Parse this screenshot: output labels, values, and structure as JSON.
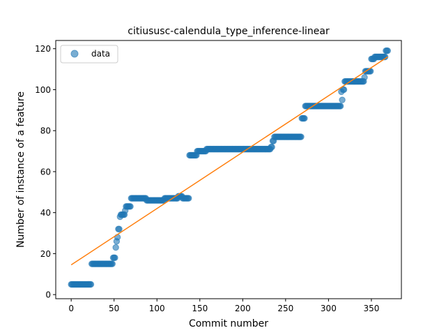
{
  "chart_data": {
    "type": "scatter",
    "title": "citiususc-calendula_type_inference-linear",
    "xlabel": "Commit number",
    "ylabel": "Number of instance of a feature",
    "xlim": [
      -18,
      385
    ],
    "ylim": [
      -2,
      124
    ],
    "xticks": [
      0,
      50,
      100,
      150,
      200,
      250,
      300,
      350
    ],
    "yticks": [
      0,
      20,
      40,
      60,
      80,
      100,
      120
    ],
    "grid": false,
    "legend_position": "top-left",
    "colors": {
      "data": "#1f77b4",
      "fit": "#ff7f0e"
    },
    "series": [
      {
        "name": "data",
        "kind": "scatter",
        "segments": [
          {
            "x_start": 0,
            "x_end": 23,
            "y": 5
          },
          {
            "x_start": 24,
            "x_end": 48,
            "y": 15
          },
          {
            "x_start": 49,
            "x_end": 51,
            "y": 18
          },
          {
            "x_start": 52,
            "x_end": 52,
            "y": 23
          },
          {
            "x_start": 53,
            "x_end": 53,
            "y": 26
          },
          {
            "x_start": 54,
            "x_end": 54,
            "y": 28
          },
          {
            "x_start": 55,
            "x_end": 56,
            "y": 32
          },
          {
            "x_start": 57,
            "x_end": 57,
            "y": 38
          },
          {
            "x_start": 58,
            "x_end": 62,
            "y": 39
          },
          {
            "x_start": 63,
            "x_end": 63,
            "y": 41
          },
          {
            "x_start": 64,
            "x_end": 69,
            "y": 43
          },
          {
            "x_start": 70,
            "x_end": 87,
            "y": 47
          },
          {
            "x_start": 88,
            "x_end": 108,
            "y": 46
          },
          {
            "x_start": 109,
            "x_end": 124,
            "y": 47
          },
          {
            "x_start": 125,
            "x_end": 129,
            "y": 48
          },
          {
            "x_start": 130,
            "x_end": 137,
            "y": 47
          },
          {
            "x_start": 138,
            "x_end": 146,
            "y": 68
          },
          {
            "x_start": 147,
            "x_end": 157,
            "y": 70
          },
          {
            "x_start": 158,
            "x_end": 232,
            "y": 71
          },
          {
            "x_start": 233,
            "x_end": 234,
            "y": 72
          },
          {
            "x_start": 235,
            "x_end": 236,
            "y": 75
          },
          {
            "x_start": 237,
            "x_end": 268,
            "y": 77
          },
          {
            "x_start": 269,
            "x_end": 272,
            "y": 86
          },
          {
            "x_start": 273,
            "x_end": 314,
            "y": 92
          },
          {
            "x_start": 315,
            "x_end": 315,
            "y": 99
          },
          {
            "x_start": 316,
            "x_end": 316,
            "y": 95
          },
          {
            "x_start": 317,
            "x_end": 318,
            "y": 100
          },
          {
            "x_start": 319,
            "x_end": 341,
            "y": 104
          },
          {
            "x_start": 342,
            "x_end": 342,
            "y": 106
          },
          {
            "x_start": 343,
            "x_end": 349,
            "y": 109
          },
          {
            "x_start": 350,
            "x_end": 353,
            "y": 115
          },
          {
            "x_start": 354,
            "x_end": 366,
            "y": 116
          },
          {
            "x_start": 367,
            "x_end": 369,
            "y": 119
          }
        ]
      },
      {
        "name": "",
        "kind": "line",
        "x": [
          0,
          369
        ],
        "y": [
          14.5,
          116
        ]
      }
    ]
  }
}
